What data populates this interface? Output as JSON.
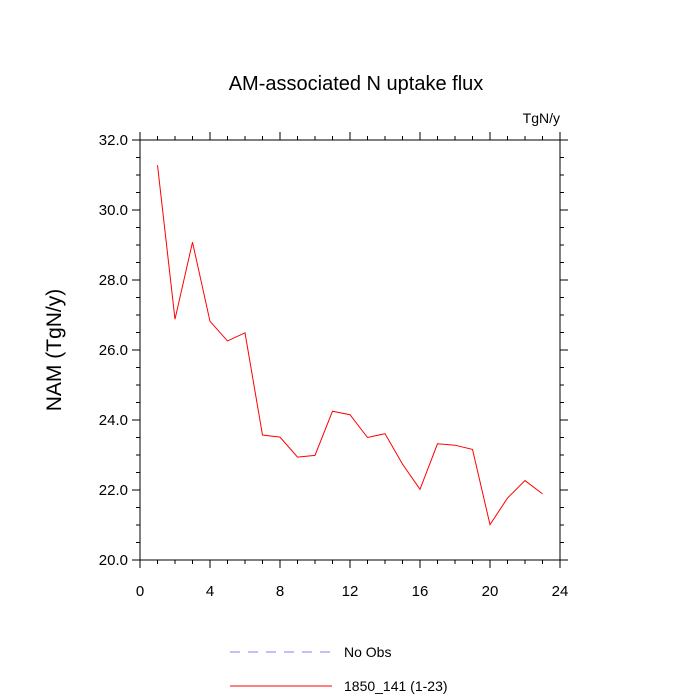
{
  "chart_data": {
    "type": "line",
    "title": "AM-associated N uptake flux",
    "units": "TgN/y",
    "xlabel": "",
    "ylabel": "NAM  (TgN/y)",
    "xlim": [
      0,
      24
    ],
    "ylim": [
      20.0,
      32.0
    ],
    "x_ticks": [
      "0",
      "4",
      "8",
      "12",
      "16",
      "20",
      "24"
    ],
    "y_ticks": [
      "20.0",
      "22.0",
      "24.0",
      "26.0",
      "28.0",
      "30.0",
      "32.0"
    ],
    "grid": false,
    "legend_position": "bottom",
    "series": [
      {
        "name": "No Obs",
        "color": "#8080ff",
        "dash": "dashed",
        "x": [],
        "values": []
      },
      {
        "name": "1850_141 (1-23)",
        "color": "#ff0000",
        "dash": "solid",
        "x": [
          1,
          2,
          3,
          4,
          5,
          6,
          7,
          8,
          9,
          10,
          11,
          12,
          13,
          14,
          15,
          16,
          17,
          18,
          19,
          20,
          21,
          22,
          23
        ],
        "values": [
          31.28,
          26.88,
          29.08,
          26.82,
          26.26,
          26.49,
          23.57,
          23.51,
          22.94,
          22.99,
          24.25,
          24.15,
          23.5,
          23.61,
          22.74,
          22.02,
          23.32,
          23.28,
          23.16,
          21.01,
          21.77,
          22.27,
          21.89
        ]
      }
    ]
  }
}
